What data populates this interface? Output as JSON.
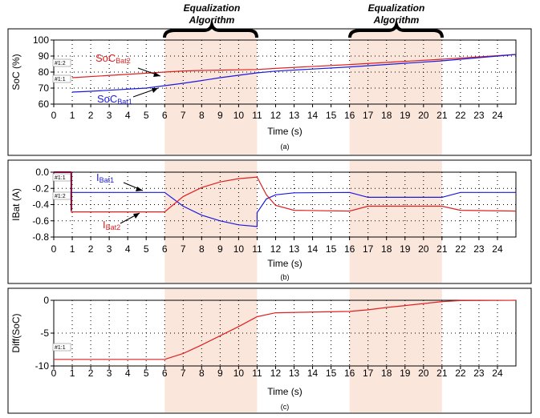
{
  "figure": {
    "banner_1": {
      "line1": "Equalization",
      "line2": "Algorithm"
    },
    "banner_2": {
      "line1": "Equalization",
      "line2": "Algorithm"
    },
    "highlight_color": "#fbe6dc",
    "panel_border_color": "#000000"
  },
  "chart_data": [
    {
      "type": "line",
      "caption": "(a)",
      "xlabel": "Time (s)",
      "ylabel": "SoC (%)",
      "xlim": [
        0,
        25
      ],
      "ylim": [
        60,
        100
      ],
      "xticks": [
        "0",
        "1",
        "2",
        "3",
        "4",
        "5",
        "6",
        "7",
        "8",
        "9",
        "10",
        "11",
        "12",
        "13",
        "14",
        "15",
        "16",
        "17",
        "18",
        "19",
        "20",
        "21",
        "22",
        "23",
        "24"
      ],
      "yticks": [
        "60",
        "70",
        "80",
        "90",
        "100"
      ],
      "grid": true,
      "shaded_intervals": [
        [
          6,
          11
        ],
        [
          16,
          21
        ]
      ],
      "cursor_labels": [
        "#1:2",
        "#1:1"
      ],
      "series": [
        {
          "name": "SoC",
          "name_sub": "Bat2",
          "color": "#e02020",
          "x": [
            1,
            6,
            7,
            8,
            9,
            10,
            11,
            12,
            16,
            21,
            25
          ],
          "y": [
            76.5,
            80.0,
            80.7,
            81.0,
            81.2,
            81.4,
            81.6,
            82.3,
            84.7,
            88.0,
            91.0
          ]
        },
        {
          "name": "SoC",
          "name_sub": "Bat1",
          "color": "#1a1ae0",
          "x": [
            1,
            2,
            5,
            6,
            7,
            8,
            9,
            10,
            11,
            12,
            16,
            21,
            25
          ],
          "y": [
            67.5,
            68.0,
            70.0,
            71.5,
            73.0,
            74.7,
            76.5,
            78.0,
            79.5,
            80.6,
            83.2,
            87.0,
            91.0
          ]
        }
      ]
    },
    {
      "type": "line",
      "caption": "(b)",
      "xlabel": "Time (s)",
      "ylabel": "IBat (A)",
      "xlim": [
        0,
        25
      ],
      "ylim": [
        -0.8,
        0.0
      ],
      "xticks": [
        "0",
        "1",
        "2",
        "3",
        "4",
        "5",
        "6",
        "7",
        "8",
        "9",
        "10",
        "11",
        "12",
        "13",
        "14",
        "15",
        "16",
        "17",
        "18",
        "19",
        "20",
        "21",
        "22",
        "23",
        "24"
      ],
      "yticks": [
        "0.0",
        "-0.2",
        "-0.4",
        "-0.6",
        "-0.8"
      ],
      "grid": true,
      "shaded_intervals": [
        [
          6,
          11
        ],
        [
          16,
          21
        ]
      ],
      "cursor_labels": [
        "#1:1",
        "#1:2"
      ],
      "series": [
        {
          "name": "I",
          "name_sub": "Bat1",
          "color": "#1a1ae0",
          "x": [
            0,
            0.95,
            0.95,
            6,
            7,
            8,
            9,
            10,
            11,
            11,
            11.5,
            12,
            13,
            16,
            17,
            21,
            22,
            25
          ],
          "y": [
            0,
            0,
            -0.25,
            -0.25,
            -0.42,
            -0.53,
            -0.6,
            -0.65,
            -0.67,
            -0.5,
            -0.33,
            -0.28,
            -0.255,
            -0.25,
            -0.31,
            -0.31,
            -0.25,
            -0.25
          ]
        },
        {
          "name": "I",
          "name_sub": "Bat2",
          "color": "#e02020",
          "x": [
            0,
            0.95,
            0.95,
            6,
            7,
            8,
            9,
            10,
            11,
            11.5,
            12,
            13,
            16,
            17,
            21,
            22,
            25
          ],
          "y": [
            0,
            0,
            -0.49,
            -0.49,
            -0.3,
            -0.19,
            -0.12,
            -0.08,
            -0.06,
            -0.28,
            -0.41,
            -0.47,
            -0.48,
            -0.42,
            -0.42,
            -0.47,
            -0.48
          ]
        }
      ]
    },
    {
      "type": "line",
      "caption": "(c)",
      "xlabel": "Time (s)",
      "ylabel": "Diff(SoC)",
      "xlim": [
        0,
        25
      ],
      "ylim": [
        -10,
        0
      ],
      "xticks": [
        "0",
        "1",
        "2",
        "3",
        "4",
        "5",
        "6",
        "7",
        "8",
        "9",
        "10",
        "11",
        "12",
        "13",
        "14",
        "15",
        "16",
        "17",
        "18",
        "19",
        "20",
        "21",
        "22",
        "23",
        "24"
      ],
      "yticks": [
        "0",
        "-5",
        "-10"
      ],
      "grid": true,
      "shaded_intervals": [
        [
          6,
          11
        ],
        [
          16,
          21
        ]
      ],
      "cursor_labels": [
        "#1:1"
      ],
      "series": [
        {
          "name": "",
          "color": "#e02020",
          "x": [
            0,
            6,
            7,
            8,
            9,
            10,
            11,
            12,
            16,
            17,
            18,
            19,
            20,
            21,
            22,
            25
          ],
          "y": [
            -9.0,
            -9.0,
            -8.1,
            -6.8,
            -5.4,
            -4.0,
            -2.5,
            -1.9,
            -1.7,
            -1.45,
            -1.1,
            -0.8,
            -0.5,
            -0.2,
            -0.05,
            0
          ]
        }
      ]
    }
  ]
}
